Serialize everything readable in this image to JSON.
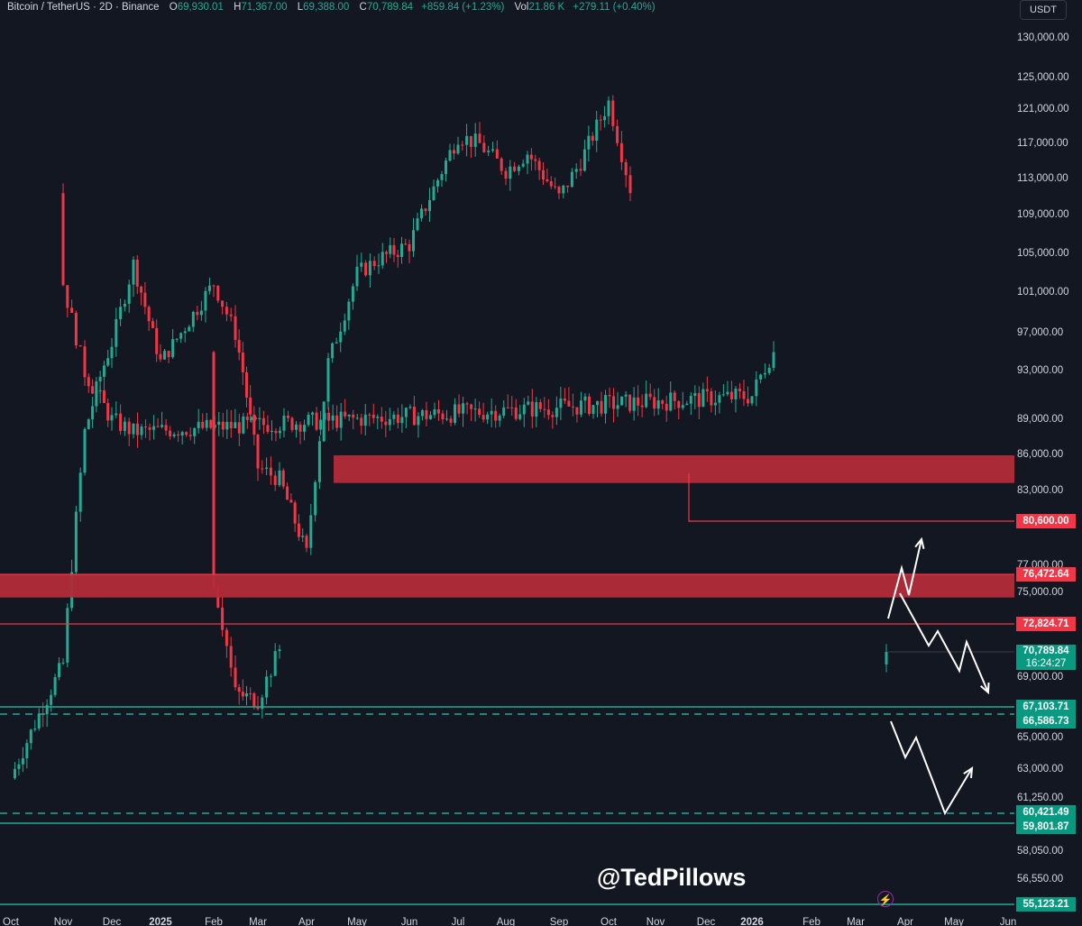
{
  "header": {
    "symbol": "Bitcoin / TetherUS · 2D · Binance",
    "open_label": "O",
    "open_value": "69,930.01",
    "high_label": "H",
    "high_value": "71,367.00",
    "low_label": "L",
    "low_value": "69,388.00",
    "close_label": "C",
    "close_value": "70,789.84",
    "change": "+859.84 (+1.23%)",
    "vol_label": "Vol",
    "vol_value": "21.86 K",
    "vol_change": "+279.11 (+0.40%)"
  },
  "currency": "USDT",
  "watermark": "@TedPillows",
  "indicator_icon": "lightning-icon",
  "colors": {
    "background": "#131722",
    "up": "#22ab94",
    "down": "#f23645",
    "zone": "#b22b3a",
    "support": "#22ab94",
    "resistance_line": "#f23645",
    "arrows": "#ffffff"
  },
  "price_axis_labels": [
    "130,000.00",
    "125,000.00",
    "121,000.00",
    "117,000.00",
    "113,000.00",
    "109,000.00",
    "105,000.00",
    "101,000.00",
    "97,000.00",
    "93,000.00",
    "89,000.00",
    "86,000.00",
    "83,000.00",
    "77,000.00",
    "75,000.00",
    "69,000.00",
    "65,000.00",
    "63,000.00",
    "61,250.00",
    "58,050.00",
    "56,550.00"
  ],
  "time_axis_labels": [
    "Oct",
    "Nov",
    "Dec",
    "2025",
    "Feb",
    "Mar",
    "Apr",
    "May",
    "Jun",
    "Jul",
    "Aug",
    "Sep",
    "Oct",
    "Nov",
    "Dec",
    "2026",
    "Feb",
    "Mar",
    "Apr",
    "May",
    "Jun"
  ],
  "price_tags": {
    "p80600": "80,600.00",
    "p76472": "76,472.64",
    "p72824": "72,824.71",
    "current_price": "70,789.84",
    "countdown": "16:24:27",
    "p67103": "67,103.71",
    "p66586": "66,586.73",
    "p60421": "60,421.49",
    "p59801": "59,801.87",
    "p55123": "55,123.21"
  },
  "chart_data": {
    "type": "candlestick",
    "symbol": "Bitcoin / TetherUS",
    "timeframe": "2D",
    "exchange": "Binance",
    "x_range": [
      "Oct",
      "Jun"
    ],
    "ylim": [
      55123.21,
      130000
    ],
    "last_candle": {
      "open": 69930.01,
      "high": 71367.0,
      "low": 69388.0,
      "close": 70789.84
    },
    "price_path": [
      [
        "Oct",
        62500
      ],
      [
        "Nov",
        70000
      ],
      [
        "Nov",
        88000
      ],
      [
        "Dec",
        96000
      ],
      [
        "Dec",
        104000
      ],
      [
        "2025",
        94000
      ],
      [
        "Feb",
        102000
      ],
      [
        "Feb",
        97000
      ],
      [
        "Mar",
        85000
      ],
      [
        "Mar",
        84000
      ],
      [
        "Apr",
        78000
      ],
      [
        "Apr",
        94000
      ],
      [
        "May",
        103000
      ],
      [
        "May",
        104500
      ],
      [
        "Jun",
        106000
      ],
      [
        "Jul",
        118000
      ],
      [
        "Jul",
        117000
      ],
      [
        "Aug",
        114000
      ],
      [
        "Aug",
        116000
      ],
      [
        "Sep",
        111000
      ],
      [
        "Sep",
        115000
      ],
      [
        "Oct",
        122000
      ],
      [
        "Oct",
        112000
      ],
      [
        "Nov",
        102000
      ],
      [
        "Nov",
        93000
      ],
      [
        "Dec",
        89000
      ],
      [
        "Dec",
        88000
      ],
      [
        "2026",
        91000
      ],
      [
        "2026",
        95000
      ],
      [
        "Feb",
        76000
      ],
      [
        "Feb",
        68000
      ],
      [
        "Mar",
        67500
      ],
      [
        "Mar",
        71000
      ]
    ],
    "resistance_zones": [
      [
        83700,
        86000
      ],
      [
        74700,
        76472.64
      ]
    ],
    "horizontal_levels": [
      80600.0,
      76472.64,
      72824.71,
      67103.71,
      66586.73,
      60421.49,
      59801.87,
      55123.21
    ],
    "dashed_levels": [
      66586.73,
      60421.49
    ],
    "projections": [
      "up toward 80,600",
      "down toward 67,103",
      "down toward 60,421 then bounce"
    ]
  }
}
